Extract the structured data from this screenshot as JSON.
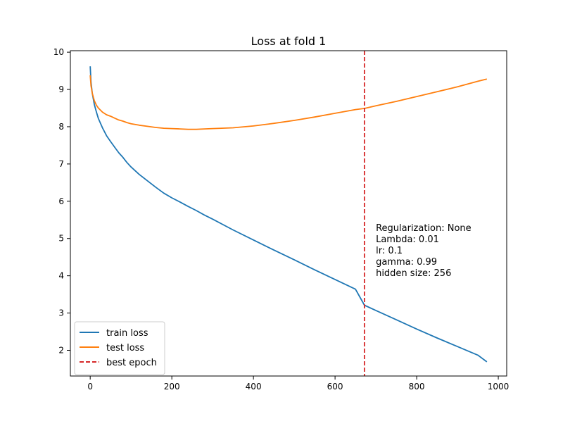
{
  "chart_data": {
    "type": "line",
    "title": "Loss at fold 1",
    "xlabel": "",
    "ylabel": "",
    "xlim": [
      -48.6,
      1020.6
    ],
    "ylim": [
      1.31,
      10.04
    ],
    "xticks": [
      0,
      200,
      400,
      600,
      800,
      1000
    ],
    "yticks": [
      2,
      3,
      4,
      5,
      6,
      7,
      8,
      9,
      10
    ],
    "grid": false,
    "legend_position": "lower-left",
    "series": [
      {
        "name": "train loss",
        "color": "#1f77b4",
        "x": [
          0,
          2,
          5,
          10,
          15,
          20,
          30,
          40,
          50,
          60,
          70,
          80,
          90,
          100,
          120,
          140,
          160,
          180,
          200,
          220,
          240,
          260,
          280,
          300,
          350,
          400,
          450,
          500,
          550,
          600,
          650,
          672,
          700,
          750,
          800,
          850,
          900,
          950,
          972
        ],
        "values": [
          9.62,
          9.2,
          8.9,
          8.6,
          8.4,
          8.22,
          7.97,
          7.76,
          7.6,
          7.45,
          7.3,
          7.18,
          7.04,
          6.92,
          6.72,
          6.55,
          6.38,
          6.22,
          6.09,
          5.98,
          5.86,
          5.75,
          5.63,
          5.52,
          5.23,
          4.96,
          4.69,
          4.43,
          4.16,
          3.9,
          3.64,
          3.21,
          3.07,
          2.82,
          2.57,
          2.33,
          2.1,
          1.87,
          1.69
        ]
      },
      {
        "name": "test loss",
        "color": "#ff7f0e",
        "x": [
          0,
          2,
          5,
          10,
          15,
          20,
          30,
          40,
          50,
          60,
          70,
          80,
          90,
          100,
          120,
          140,
          160,
          180,
          200,
          220,
          240,
          260,
          280,
          300,
          350,
          400,
          450,
          500,
          550,
          600,
          650,
          672,
          700,
          750,
          800,
          850,
          900,
          950,
          972
        ],
        "values": [
          9.38,
          9.1,
          8.9,
          8.7,
          8.58,
          8.5,
          8.39,
          8.32,
          8.28,
          8.23,
          8.18,
          8.15,
          8.11,
          8.08,
          8.04,
          8.01,
          7.98,
          7.96,
          7.95,
          7.94,
          7.93,
          7.93,
          7.94,
          7.95,
          7.97,
          8.02,
          8.09,
          8.17,
          8.26,
          8.36,
          8.46,
          8.49,
          8.56,
          8.68,
          8.81,
          8.94,
          9.07,
          9.22,
          9.28
        ]
      }
    ],
    "vlines": [
      {
        "name": "best epoch",
        "x": 672,
        "color": "#d62728",
        "style": "dashed"
      }
    ],
    "annotation": {
      "x": 700,
      "y": 5.2,
      "lines": [
        "Regularization: None",
        "Lambda: 0.01",
        "lr: 0.1",
        "gamma: 0.99",
        "hidden size: 256"
      ]
    }
  }
}
